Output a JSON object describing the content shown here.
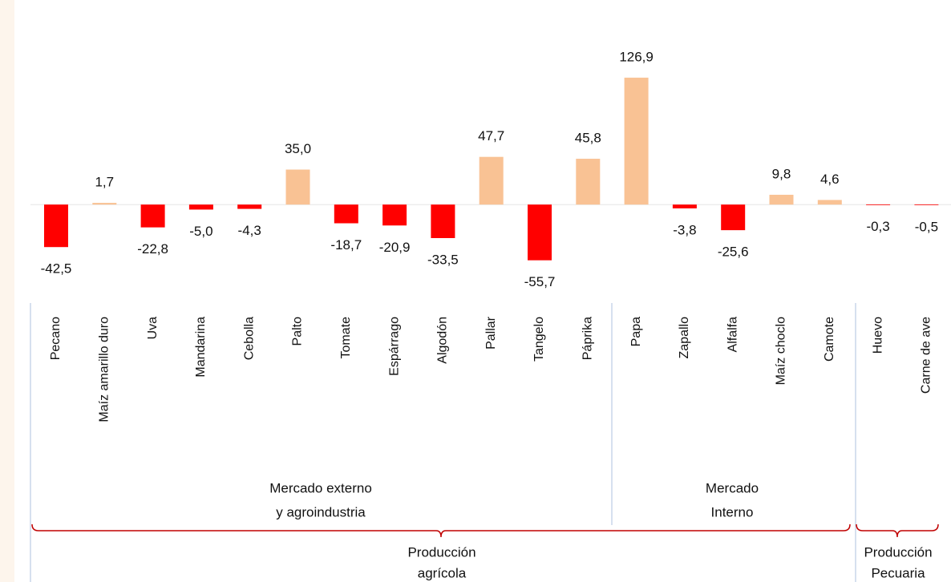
{
  "chart_data": {
    "type": "bar",
    "categories": [
      "Pecano",
      "Maíz amarillo duro",
      "Uva",
      "Mandarina",
      "Cebolla",
      "Palto",
      "Tomate",
      "Espárrago",
      "Algodón",
      "Pallar",
      "Tangelo",
      "Páprika",
      "Papa",
      "Zapallo",
      "Alfalfa",
      "Maíz choclo",
      "Camote",
      "Huevo",
      "Carne de ave"
    ],
    "values": [
      -42.5,
      1.7,
      -22.8,
      -5.0,
      -4.3,
      35.0,
      -18.7,
      -20.9,
      -33.5,
      47.7,
      -55.7,
      45.8,
      126.9,
      -3.8,
      -25.6,
      9.8,
      4.6,
      -0.3,
      -0.5
    ],
    "value_labels": [
      "-42,5",
      "1,7",
      "-22,8",
      "-5,0",
      "-4,3",
      "35,0",
      "-18,7",
      "-20,9",
      "-33,5",
      "47,7",
      "-55,7",
      "45,8",
      "126,9",
      "-3,8",
      "-25,6",
      "9,8",
      "4,6",
      "-0,3",
      "-0,5"
    ],
    "colors": {
      "positive": "#f9c294",
      "negative": "#ff0000"
    },
    "ylim": [
      -80,
      130
    ],
    "groups": [
      [
        "Mercado externo",
        "y agroindustria"
      ],
      [
        "Mercado",
        "Interno"
      ]
    ],
    "supergroups": [
      [
        "Producción",
        "agrícola"
      ],
      [
        "Producción",
        "Pecuaria"
      ]
    ]
  }
}
